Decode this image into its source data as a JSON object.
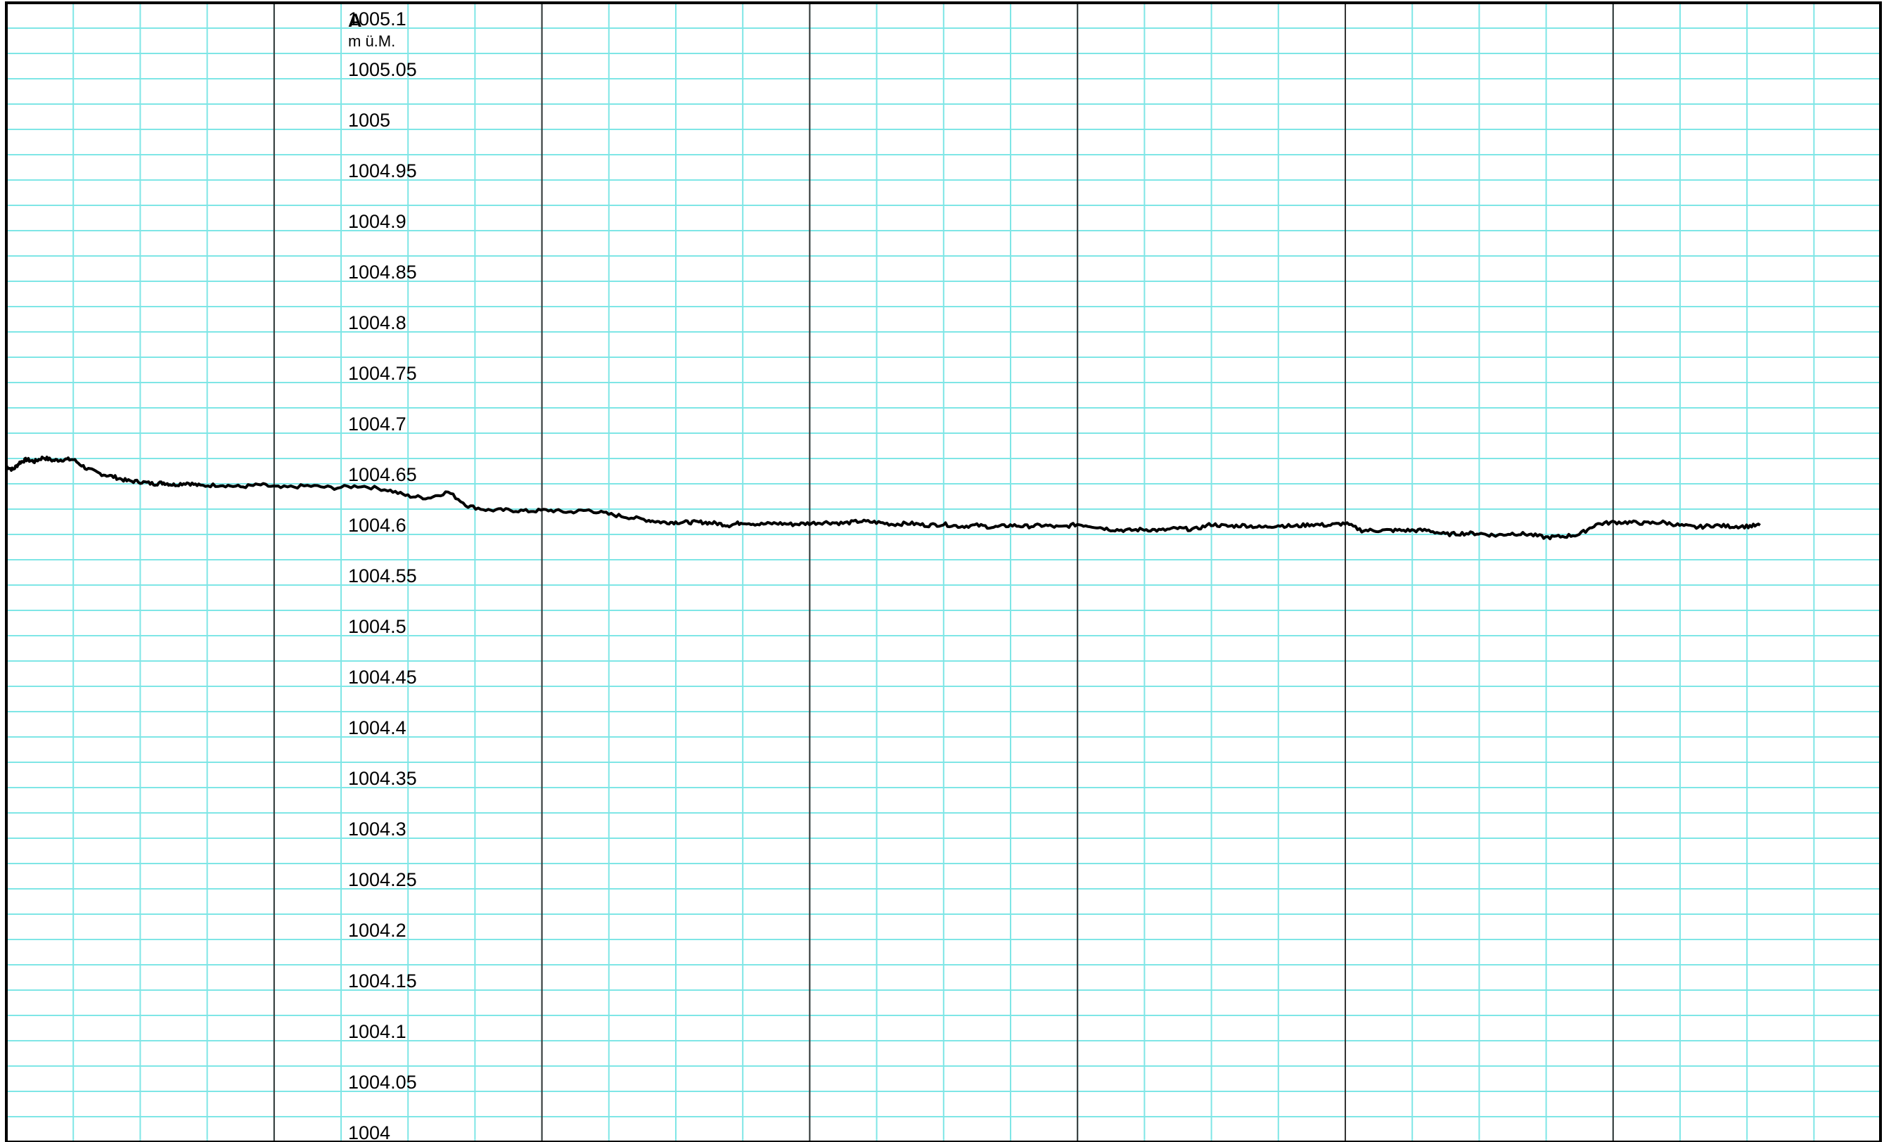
{
  "chart_data": {
    "type": "line",
    "title": "",
    "xlabel": "",
    "ylabel": "A",
    "yunit": "m ü.M.",
    "ylim": [
      1004,
      1005.125
    ],
    "yticks": [
      1004,
      1004.05,
      1004.1,
      1004.15,
      1004.2,
      1004.25,
      1004.3,
      1004.35,
      1004.4,
      1004.45,
      1004.5,
      1004.55,
      1004.6,
      1004.65,
      1004.7,
      1004.75,
      1004.8,
      1004.85,
      1004.9,
      1004.95,
      1005,
      1005.05,
      1005.1
    ],
    "ytick_labels": [
      "1004",
      "1004.05",
      "1004.1",
      "1004.15",
      "1004.2",
      "1004.25",
      "1004.3",
      "1004.35",
      "1004.4",
      "1004.45",
      "1004.5",
      "1004.55",
      "1004.6",
      "1004.65",
      "1004.7",
      "1004.75",
      "1004.8",
      "1004.85",
      "1004.9",
      "1004.95",
      "1005",
      "1005.05",
      "1005.1"
    ],
    "grid": true,
    "grid_minor_color": "#7fe6e6",
    "grid_major_color": "#333333",
    "line_color": "#000000",
    "series": [
      {
        "x": [
          0,
          0.1,
          0.2,
          0.3,
          0.42,
          0.55,
          0.7,
          0.85,
          1.0,
          1.2,
          1.4,
          1.6,
          1.8,
          2.0,
          2.2,
          2.35,
          2.5,
          2.7,
          2.9,
          3.2,
          3.5,
          3.8,
          4.1,
          4.5,
          4.9,
          5.3,
          5.7,
          6.0,
          6.3,
          6.6,
          6.9,
          7.2,
          7.5,
          7.8,
          8.1,
          8.4,
          8.7,
          9.0,
          9.3,
          9.6,
          9.8,
          10.0,
          10.2,
          10.4,
          10.6,
          10.8,
          11.0,
          11.25,
          11.5,
          11.75,
          12.0,
          12.25,
          12.5,
          12.75,
          13.0,
          13.25,
          13.5,
          13.75,
          14.0,
          14.25,
          14.5,
          14.75,
          15.0,
          15.25,
          15.5,
          15.75,
          16.0,
          16.25,
          16.5,
          16.75,
          17.0,
          17.25,
          17.5,
          17.75,
          18.0,
          18.25,
          18.5,
          18.75,
          19.0,
          19.25,
          19.5,
          19.75,
          20.0,
          20.25,
          20.5,
          20.75,
          21.0,
          21.25,
          21.5,
          21.75,
          22.0,
          22.25,
          22.5,
          22.75,
          23.0,
          23.25,
          23.5,
          23.75,
          24.0,
          24.25,
          24.5,
          24.75,
          25.0,
          25.25,
          25.5,
          25.75,
          26.0,
          26.2
        ],
        "y": [
          1004.667,
          1004.664,
          1004.671,
          1004.674,
          1004.672,
          1004.676,
          1004.673,
          1004.674,
          1004.674,
          1004.665,
          1004.66,
          1004.657,
          1004.653,
          1004.652,
          1004.65,
          1004.651,
          1004.649,
          1004.651,
          1004.648,
          1004.649,
          1004.647,
          1004.649,
          1004.646,
          1004.648,
          1004.646,
          1004.648,
          1004.644,
          1004.638,
          1004.636,
          1004.642,
          1004.628,
          1004.624,
          1004.624,
          1004.623,
          1004.624,
          1004.622,
          1004.624,
          1004.62,
          1004.617,
          1004.614,
          1004.612,
          1004.612,
          1004.612,
          1004.612,
          1004.611,
          1004.609,
          1004.612,
          1004.61,
          1004.611,
          1004.61,
          1004.611,
          1004.612,
          1004.611,
          1004.613,
          1004.612,
          1004.61,
          1004.611,
          1004.609,
          1004.61,
          1004.608,
          1004.609,
          1004.607,
          1004.609,
          1004.608,
          1004.609,
          1004.607,
          1004.61,
          1004.608,
          1004.605,
          1004.604,
          1004.605,
          1004.604,
          1004.606,
          1004.605,
          1004.61,
          1004.608,
          1004.609,
          1004.607,
          1004.609,
          1004.608,
          1004.61,
          1004.609,
          1004.611,
          1004.604,
          1004.604,
          1004.604,
          1004.604,
          1004.604,
          1004.6,
          1004.601,
          1004.601,
          1004.599,
          1004.601,
          1004.6,
          1004.597,
          1004.598,
          1004.6,
          1004.61,
          1004.612,
          1004.612,
          1004.611,
          1004.612,
          1004.609,
          1004.607,
          1004.609,
          1004.608,
          1004.608,
          1004.609
        ]
      }
    ]
  }
}
